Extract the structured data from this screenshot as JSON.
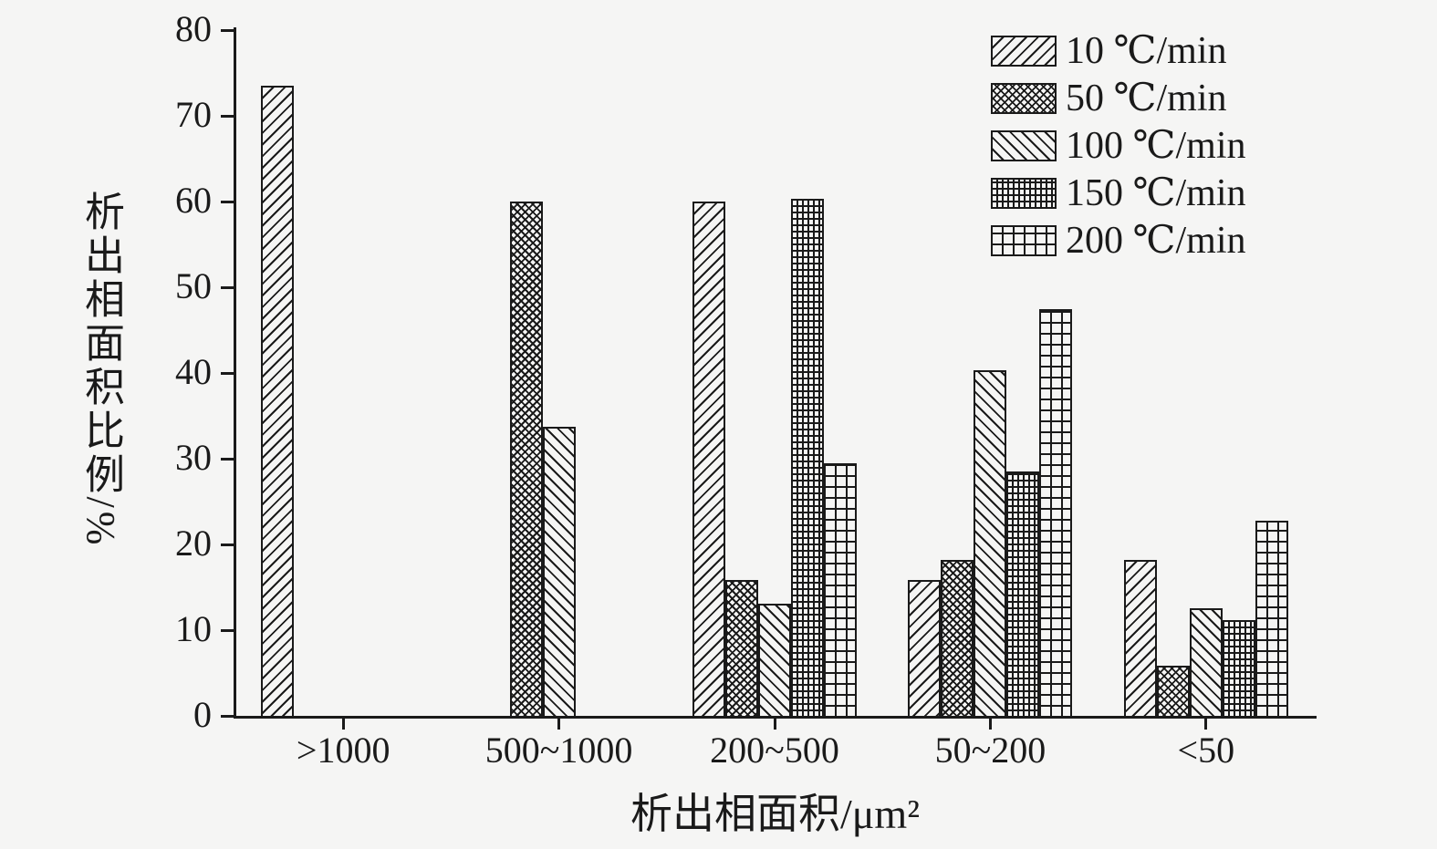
{
  "page": {
    "background": "#f5f5f4",
    "ink": "#1a1a1a"
  },
  "chart_data": {
    "type": "bar",
    "title": "",
    "xlabel": "析出相面积/μm²",
    "ylabel": "析出相面积比例/%",
    "ylim": [
      0,
      80
    ],
    "yticks": [
      0,
      10,
      20,
      30,
      40,
      50,
      60,
      70,
      80
    ],
    "grid": false,
    "legend_position": "top-right-inside",
    "categories": [
      ">1000",
      "500~1000",
      "200~500",
      "50~200",
      "<50"
    ],
    "series": [
      {
        "name": "10 ℃/min",
        "pattern": "diagonal-forward",
        "values": [
          73.5,
          0,
          60,
          15.8,
          18.2
        ]
      },
      {
        "name": "50 ℃/min",
        "pattern": "crosshatch",
        "values": [
          0,
          60,
          15.8,
          18.2,
          5.9
        ]
      },
      {
        "name": "100 ℃/min",
        "pattern": "diagonal-back",
        "values": [
          0,
          33.7,
          13.1,
          40.3,
          12.6
        ]
      },
      {
        "name": "150 ℃/min",
        "pattern": "fine-grid",
        "values": [
          0,
          0,
          60.3,
          28.5,
          11.2
        ]
      },
      {
        "name": "200 ℃/min",
        "pattern": "open-grid",
        "values": [
          0,
          0,
          29.5,
          47.5,
          22.8
        ]
      }
    ]
  }
}
